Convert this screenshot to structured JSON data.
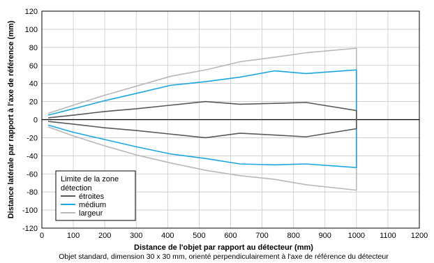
{
  "chart_data": {
    "type": "line",
    "xlabel": "Distance de l'objet par rapport au détecteur (mm)",
    "ylabel": "Distance latérale par rapport à l'axe de référence (mm)",
    "note": "Objet standard, dimension 30 x 30 mm, orienté perpendiculairement à l'axe de référence du détecteur",
    "xlim": [
      0,
      1200
    ],
    "ylim": [
      -120,
      120
    ],
    "x_ticks": [
      0,
      100,
      200,
      300,
      400,
      500,
      600,
      700,
      800,
      900,
      1000,
      1100,
      1200
    ],
    "y_ticks": [
      120,
      100,
      80,
      60,
      40,
      20,
      0,
      -20,
      -40,
      -60,
      -80,
      -100,
      -120
    ],
    "grid": true,
    "legend": {
      "title": "Limite de la zone détection",
      "title_line1": "Limite de la zone",
      "title_line2": "détection",
      "position": "bottom-left"
    },
    "series": [
      {
        "name": "étroites",
        "color": "#595959",
        "upper": [
          [
            20,
            2
          ],
          [
            100,
            5
          ],
          [
            200,
            9
          ],
          [
            300,
            12
          ],
          [
            410,
            16
          ],
          [
            520,
            20
          ],
          [
            630,
            17
          ],
          [
            740,
            18
          ],
          [
            840,
            19
          ],
          [
            1000,
            10
          ]
        ],
        "lower": [
          [
            20,
            -2
          ],
          [
            100,
            -5
          ],
          [
            200,
            -9
          ],
          [
            300,
            -12
          ],
          [
            410,
            -16
          ],
          [
            520,
            -20
          ],
          [
            630,
            -15
          ],
          [
            740,
            -17
          ],
          [
            840,
            -19
          ],
          [
            1000,
            -10
          ]
        ]
      },
      {
        "name": "médium",
        "color": "#1aa7e0",
        "upper": [
          [
            20,
            5
          ],
          [
            100,
            12
          ],
          [
            200,
            21
          ],
          [
            300,
            29
          ],
          [
            410,
            38
          ],
          [
            520,
            42
          ],
          [
            630,
            47
          ],
          [
            740,
            54
          ],
          [
            840,
            51
          ],
          [
            1000,
            55
          ]
        ],
        "lower": [
          [
            20,
            -6
          ],
          [
            100,
            -14
          ],
          [
            200,
            -22
          ],
          [
            300,
            -30
          ],
          [
            410,
            -38
          ],
          [
            520,
            -43
          ],
          [
            630,
            -49
          ],
          [
            740,
            -50
          ],
          [
            840,
            -49
          ],
          [
            1000,
            -53
          ]
        ]
      },
      {
        "name": "largeur",
        "color": "#b8b8b8",
        "upper": [
          [
            20,
            7
          ],
          [
            100,
            16
          ],
          [
            200,
            27
          ],
          [
            300,
            37
          ],
          [
            410,
            48
          ],
          [
            520,
            55
          ],
          [
            630,
            64
          ],
          [
            740,
            69
          ],
          [
            840,
            74
          ],
          [
            1000,
            79
          ]
        ],
        "lower": [
          [
            20,
            -8
          ],
          [
            100,
            -18
          ],
          [
            200,
            -29
          ],
          [
            300,
            -39
          ],
          [
            410,
            -48
          ],
          [
            520,
            -56
          ],
          [
            630,
            -62
          ],
          [
            740,
            -66
          ],
          [
            840,
            -72
          ],
          [
            1000,
            -78
          ]
        ]
      }
    ]
  }
}
